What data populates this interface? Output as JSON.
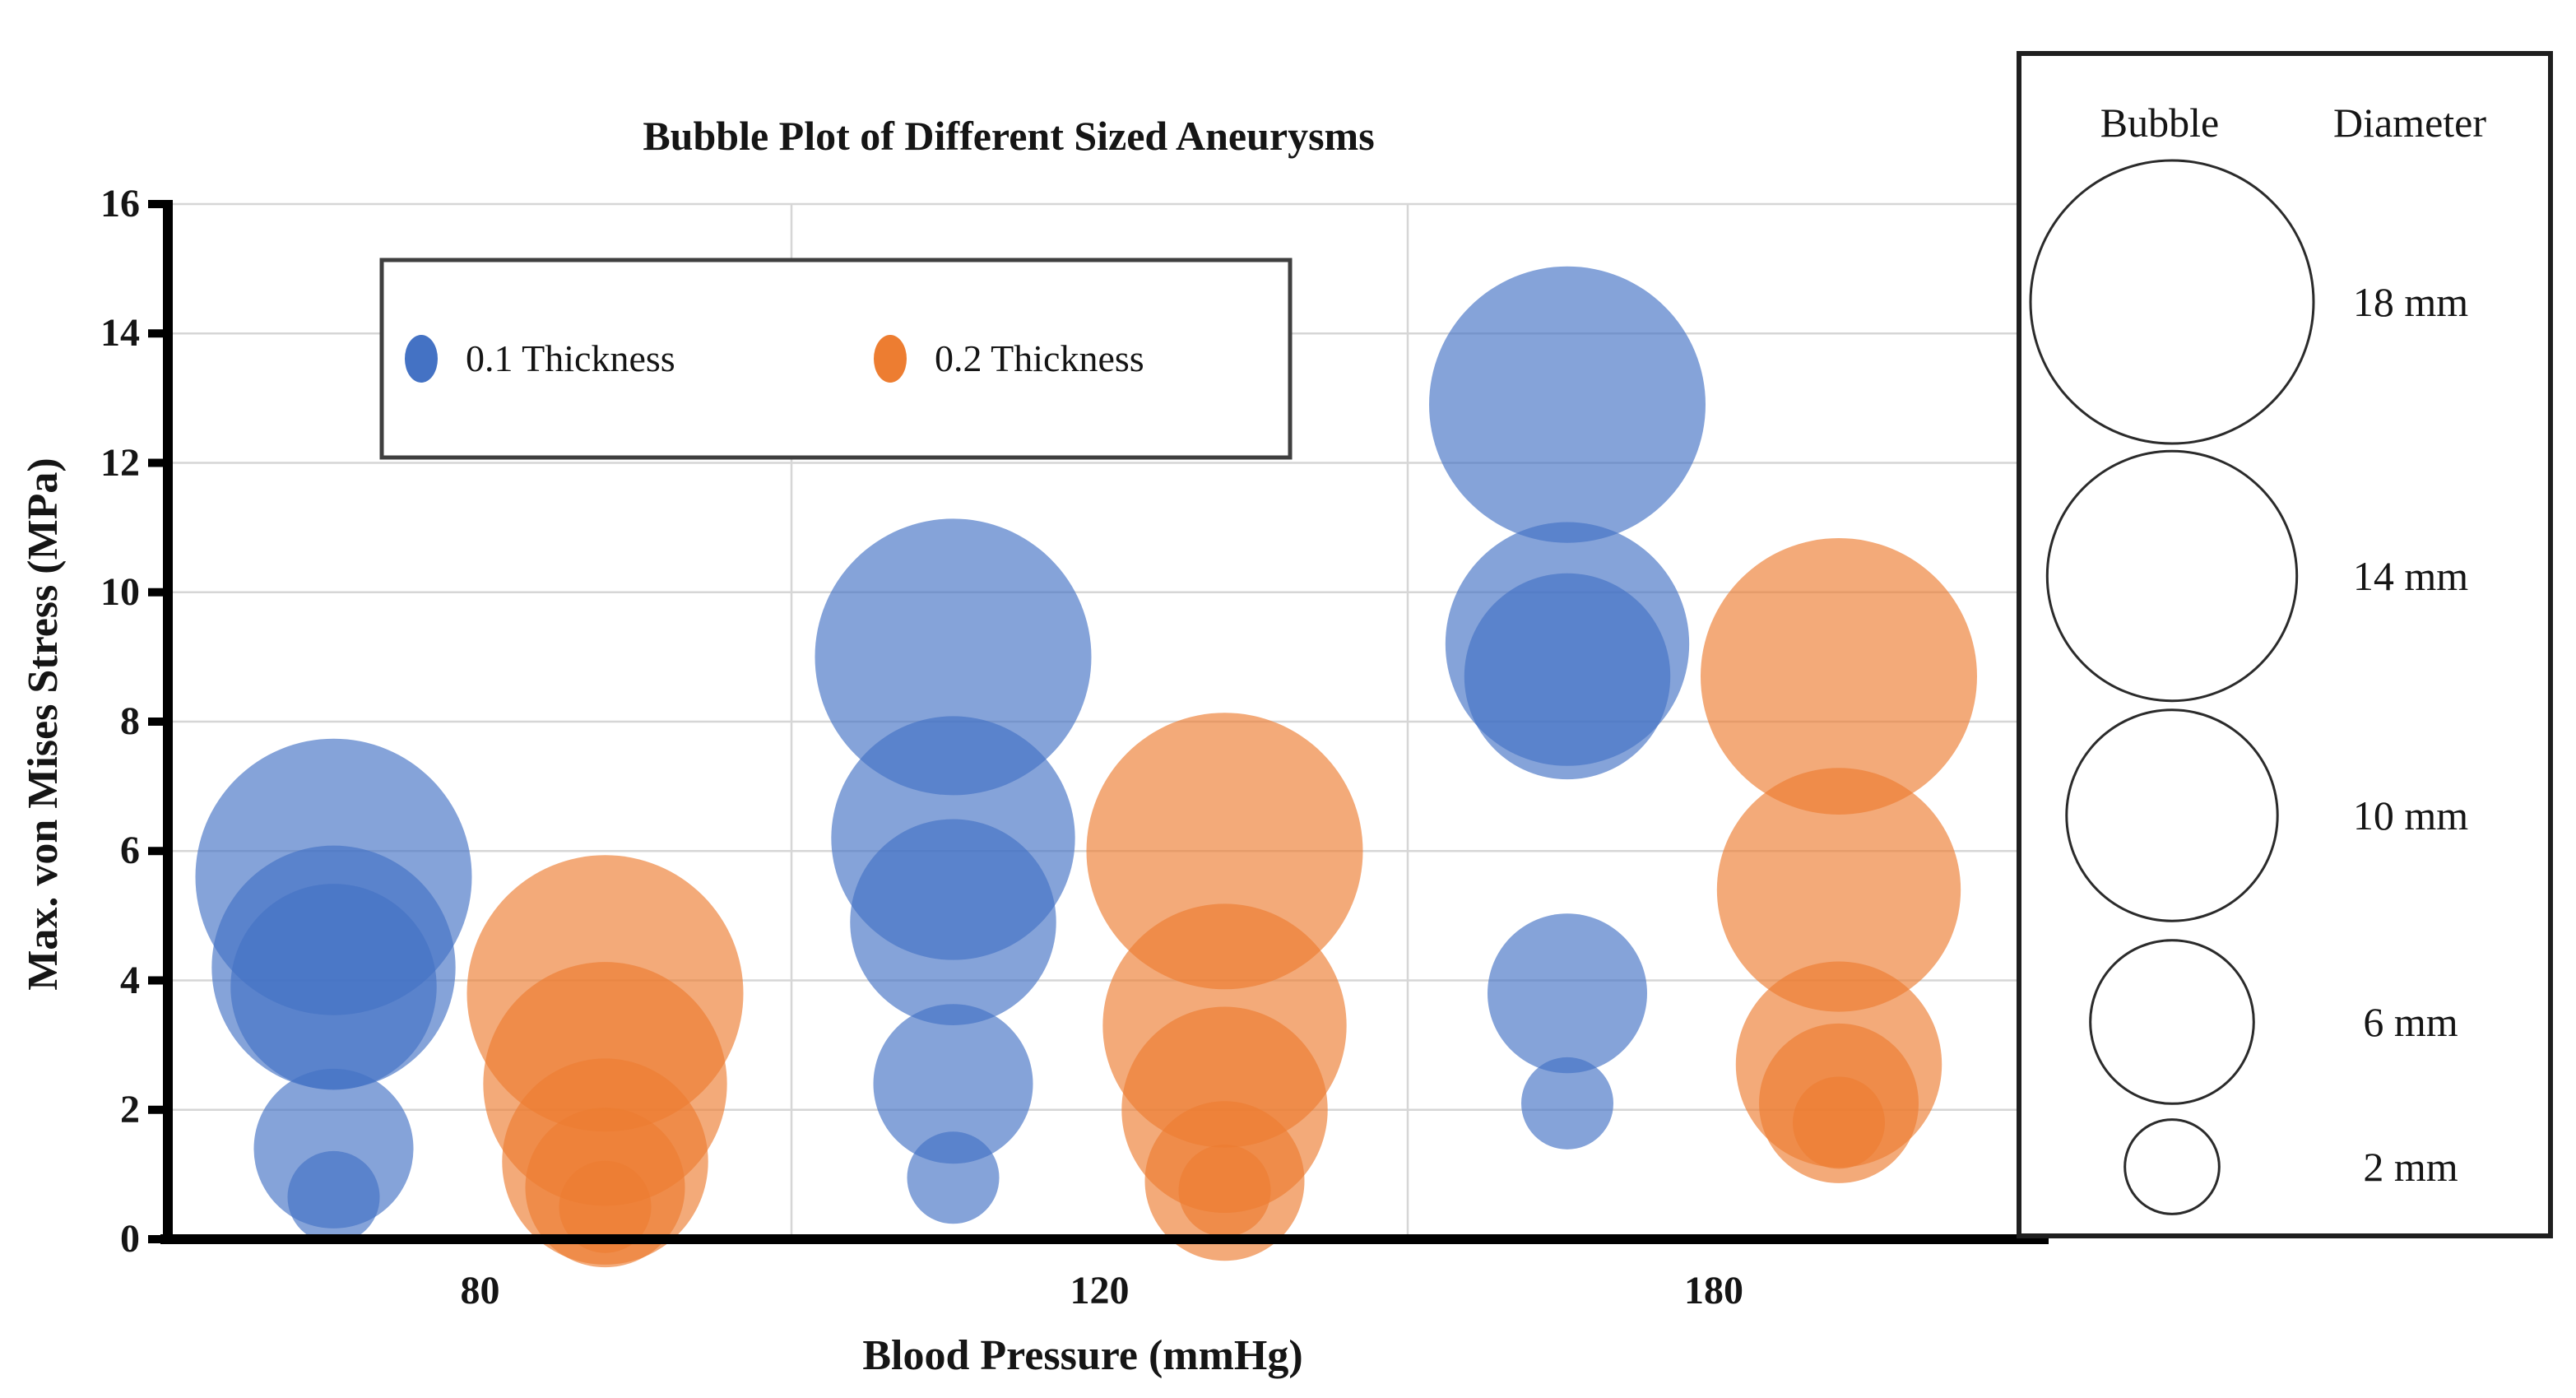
{
  "chart_data": {
    "type": "bubble",
    "title": "Bubble Plot of Different Sized Aneurysms",
    "xlabel": "Blood Pressure (mmHg)",
    "ylabel": "Max. von Mises Stress (MPa)",
    "x_categories": [
      "80",
      "120",
      "180"
    ],
    "y_axis": {
      "min": 0,
      "max": 16,
      "step": 2
    },
    "grid": true,
    "bubble_opacity": 0.65,
    "legend": {
      "position": "top-left-inside",
      "entries": [
        {
          "label": "0.1 Thickness",
          "color": "#4472C4"
        },
        {
          "label": "0.2 Thickness",
          "color": "#ED7D31"
        }
      ]
    },
    "series": [
      {
        "name": "0.1 Thickness",
        "color": "#4472C4",
        "points": [
          {
            "x": "80",
            "diameter_mm": 2,
            "stress_mpa": 0.65
          },
          {
            "x": "80",
            "diameter_mm": 6,
            "stress_mpa": 1.4
          },
          {
            "x": "80",
            "diameter_mm": 10,
            "stress_mpa": 3.9
          },
          {
            "x": "80",
            "diameter_mm": 14,
            "stress_mpa": 4.2
          },
          {
            "x": "80",
            "diameter_mm": 18,
            "stress_mpa": 5.6
          },
          {
            "x": "120",
            "diameter_mm": 2,
            "stress_mpa": 0.95
          },
          {
            "x": "120",
            "diameter_mm": 6,
            "stress_mpa": 2.4
          },
          {
            "x": "120",
            "diameter_mm": 10,
            "stress_mpa": 4.9
          },
          {
            "x": "120",
            "diameter_mm": 14,
            "stress_mpa": 6.2
          },
          {
            "x": "120",
            "diameter_mm": 18,
            "stress_mpa": 9.0
          },
          {
            "x": "180",
            "diameter_mm": 2,
            "stress_mpa": 2.1
          },
          {
            "x": "180",
            "diameter_mm": 6,
            "stress_mpa": 3.8
          },
          {
            "x": "180",
            "diameter_mm": 10,
            "stress_mpa": 8.7
          },
          {
            "x": "180",
            "diameter_mm": 14,
            "stress_mpa": 9.2
          },
          {
            "x": "180",
            "diameter_mm": 18,
            "stress_mpa": 12.9
          }
        ]
      },
      {
        "name": "0.2 Thickness",
        "color": "#ED7D31",
        "points": [
          {
            "x": "80",
            "diameter_mm": 2,
            "stress_mpa": 0.5
          },
          {
            "x": "80",
            "diameter_mm": 6,
            "stress_mpa": 0.8
          },
          {
            "x": "80",
            "diameter_mm": 10,
            "stress_mpa": 1.2
          },
          {
            "x": "80",
            "diameter_mm": 14,
            "stress_mpa": 2.4
          },
          {
            "x": "80",
            "diameter_mm": 18,
            "stress_mpa": 3.8
          },
          {
            "x": "120",
            "diameter_mm": 2,
            "stress_mpa": 0.75
          },
          {
            "x": "120",
            "diameter_mm": 6,
            "stress_mpa": 0.9
          },
          {
            "x": "120",
            "diameter_mm": 10,
            "stress_mpa": 2.0
          },
          {
            "x": "120",
            "diameter_mm": 14,
            "stress_mpa": 3.3
          },
          {
            "x": "120",
            "diameter_mm": 18,
            "stress_mpa": 6.0
          },
          {
            "x": "180",
            "diameter_mm": 2,
            "stress_mpa": 1.8
          },
          {
            "x": "180",
            "diameter_mm": 6,
            "stress_mpa": 2.1
          },
          {
            "x": "180",
            "diameter_mm": 10,
            "stress_mpa": 2.7
          },
          {
            "x": "180",
            "diameter_mm": 14,
            "stress_mpa": 5.4
          },
          {
            "x": "180",
            "diameter_mm": 18,
            "stress_mpa": 8.7
          }
        ]
      }
    ],
    "size_legend": {
      "col1_header": "Bubble",
      "col2_header": "Diameter",
      "entries": [
        {
          "diameter_mm": 18,
          "label": "18 mm"
        },
        {
          "diameter_mm": 14,
          "label": "14 mm"
        },
        {
          "diameter_mm": 10,
          "label": "10 mm"
        },
        {
          "diameter_mm": 6,
          "label": "6 mm"
        },
        {
          "diameter_mm": 2,
          "label": "2 mm"
        }
      ]
    }
  }
}
